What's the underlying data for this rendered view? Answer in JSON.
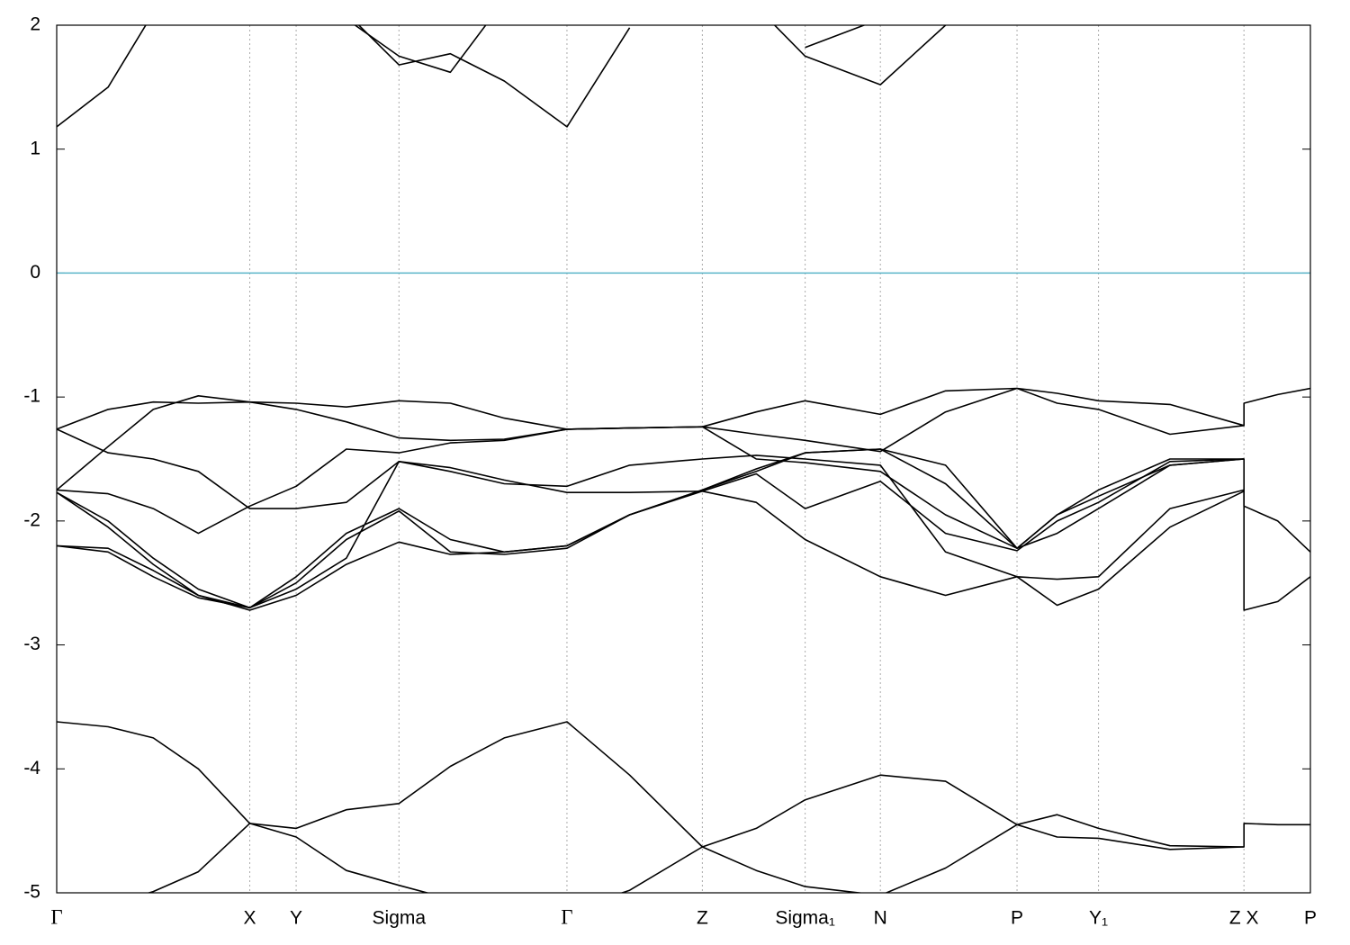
{
  "chart_data": {
    "type": "line",
    "x": [
      0,
      0.041,
      0.077,
      0.113,
      0.154,
      0.191,
      0.231,
      0.273,
      0.314,
      0.357,
      0.407,
      0.457,
      0.515,
      0.558,
      0.597,
      0.657,
      0.709,
      0.766,
      0.798,
      0.831,
      0.888,
      0.947,
      0.947,
      0.974,
      1
    ],
    "xlim": [
      0,
      1
    ],
    "xticks": [
      {
        "value": 0,
        "label": "Γ"
      },
      {
        "value": 0.154,
        "label": "X"
      },
      {
        "value": 0.191,
        "label": "Y"
      },
      {
        "value": 0.273,
        "label": "Sigma"
      },
      {
        "value": 0.407,
        "label": "Γ"
      },
      {
        "value": 0.515,
        "label": "Z"
      },
      {
        "value": 0.597,
        "label": "Sigma₁"
      },
      {
        "value": 0.657,
        "label": "N"
      },
      {
        "value": 0.766,
        "label": "P"
      },
      {
        "value": 0.831,
        "label": "Y₁"
      },
      {
        "value": 0.947,
        "label": "Z  X"
      },
      {
        "value": 1,
        "label": "P"
      }
    ],
    "ylim": [
      -5,
      2
    ],
    "yticks": [
      -5,
      -4,
      -3,
      -2,
      -1,
      0,
      1,
      2
    ],
    "xgrid": true,
    "reference_line": {
      "value": 0,
      "color": "#5ab4c8"
    },
    "series": [
      {
        "color": "#000000",
        "values": [
          -1.26,
          -1.1,
          -1.04,
          -1.05,
          -1.04,
          -1.05,
          -1.08,
          -1.03,
          -1.05,
          -1.17,
          -1.26,
          -1.25,
          -1.24,
          -1.12,
          -1.03,
          -1.14,
          -0.95,
          -0.93,
          -0.97,
          -1.03,
          -1.06,
          -1.23,
          -1.05,
          -0.98,
          -0.93
        ]
      },
      {
        "color": "#000000",
        "values": [
          -1.75,
          -1.4,
          -1.1,
          -0.99,
          -1.04,
          -1.1,
          -1.2,
          -1.33,
          -1.35,
          -1.34,
          -1.26,
          -1.25,
          -1.24,
          -1.3,
          -1.35,
          -1.44,
          -1.12,
          -0.93,
          -1.05,
          -1.1,
          -1.3,
          -1.23,
          null,
          null,
          null
        ]
      },
      {
        "color": "#000000",
        "values": [
          -1.26,
          -1.45,
          -1.5,
          -1.6,
          -1.9,
          -1.9,
          -1.85,
          -1.52,
          -1.57,
          -1.67,
          -1.77,
          -1.77,
          -1.76,
          -1.62,
          -1.9,
          -1.68,
          -2.1,
          -2.24,
          -2.0,
          -1.85,
          -1.52,
          -1.5,
          -1.88,
          -2.0,
          -2.25
        ]
      },
      {
        "color": "#000000",
        "values": [
          -1.75,
          -1.78,
          -1.9,
          -2.1,
          -1.88,
          -1.72,
          -1.42,
          -1.45,
          -1.37,
          -1.35,
          -1.26,
          -1.25,
          -1.24,
          -1.5,
          -1.53,
          -1.6,
          -1.95,
          -2.22,
          -1.95,
          -1.75,
          -1.5,
          -1.5,
          null,
          null,
          null
        ]
      },
      {
        "color": "#000000",
        "values": [
          -1.77,
          -2.0,
          -2.3,
          -2.55,
          -2.7,
          -2.45,
          -2.1,
          -1.9,
          -2.15,
          -2.25,
          -2.2,
          -1.95,
          -1.75,
          -1.58,
          -1.45,
          -1.42,
          -1.55,
          -2.22,
          -1.95,
          -1.8,
          -1.55,
          -1.5,
          null,
          null,
          null
        ]
      },
      {
        "color": "#000000",
        "values": [
          -1.77,
          -2.05,
          -2.35,
          -2.6,
          -2.72,
          -2.6,
          -2.35,
          -2.17,
          -2.27,
          -2.25,
          -2.2,
          -1.95,
          -1.75,
          -1.6,
          -1.45,
          -1.42,
          -1.7,
          -2.22,
          -2.1,
          -1.9,
          -1.55,
          -1.5,
          null,
          null,
          null
        ]
      },
      {
        "color": "#000000",
        "values": [
          -2.2,
          -2.25,
          -2.45,
          -2.62,
          -2.7,
          -2.55,
          -2.3,
          -1.52,
          -1.6,
          -1.7,
          -1.72,
          -1.55,
          -1.5,
          -1.47,
          -1.5,
          -1.55,
          -2.25,
          -2.45,
          -2.47,
          -2.45,
          -1.9,
          -1.75,
          -2.72,
          -2.65,
          -2.45
        ]
      },
      {
        "color": "#000000",
        "values": [
          -2.2,
          -2.22,
          -2.4,
          -2.6,
          -2.7,
          -2.5,
          -2.15,
          -1.92,
          -2.25,
          -2.27,
          -2.22,
          -1.95,
          -1.76,
          -1.85,
          -2.15,
          -2.45,
          -2.6,
          -2.45,
          -2.68,
          -2.55,
          -2.05,
          -1.76,
          null,
          null,
          null
        ]
      },
      {
        "color": "#000000",
        "values": [
          -3.62,
          -3.66,
          -3.75,
          -4.0,
          -4.44,
          -4.48,
          -4.33,
          -4.28,
          -3.98,
          -3.75,
          -3.62,
          -4.05,
          -4.63,
          -4.48,
          -4.25,
          -4.05,
          -4.1,
          -4.45,
          -4.37,
          -4.48,
          -4.62,
          -4.63,
          -4.44,
          -4.45,
          -4.45
        ]
      },
      {
        "color": "#000000",
        "values": [
          -5.2,
          -5.1,
          -4.99,
          -4.83,
          -4.44,
          -4.55,
          -4.82,
          -4.94,
          -5.05,
          -5.1,
          -5.15,
          -4.98,
          -4.63,
          -4.82,
          -4.95,
          -5.02,
          -4.8,
          -4.45,
          -4.55,
          -4.56,
          -4.65,
          -4.63,
          null,
          null,
          null
        ]
      },
      {
        "color": "#000000",
        "values": [
          1.18,
          1.5,
          2.1,
          null,
          null,
          null,
          null,
          null,
          null,
          null,
          null,
          null,
          null,
          null,
          null,
          null,
          null,
          null,
          null,
          null,
          null,
          null,
          null,
          null,
          null
        ]
      },
      {
        "color": "#000000",
        "values": [
          null,
          null,
          null,
          null,
          null,
          null,
          2.05,
          1.75,
          1.62,
          2.2,
          null,
          null,
          null,
          null,
          null,
          null,
          null,
          null,
          null,
          null,
          null,
          null,
          null,
          null,
          null
        ]
      },
      {
        "color": "#000000",
        "values": [
          null,
          null,
          null,
          null,
          null,
          null,
          2.1,
          1.68,
          1.77,
          1.55,
          1.18,
          1.98,
          null,
          null,
          null,
          null,
          null,
          null,
          null,
          null,
          null,
          null,
          null,
          null,
          null
        ]
      },
      {
        "color": "#000000",
        "values": [
          null,
          null,
          null,
          null,
          null,
          null,
          null,
          null,
          null,
          null,
          null,
          null,
          null,
          2.15,
          1.75,
          1.52,
          2.0,
          null,
          null,
          null,
          null,
          null,
          null,
          null,
          null
        ]
      },
      {
        "color": "#000000",
        "values": [
          null,
          null,
          null,
          null,
          null,
          null,
          null,
          null,
          null,
          null,
          null,
          null,
          null,
          null,
          1.82,
          2.05,
          null,
          null,
          null,
          null,
          null,
          null,
          null,
          null,
          null
        ]
      }
    ]
  }
}
